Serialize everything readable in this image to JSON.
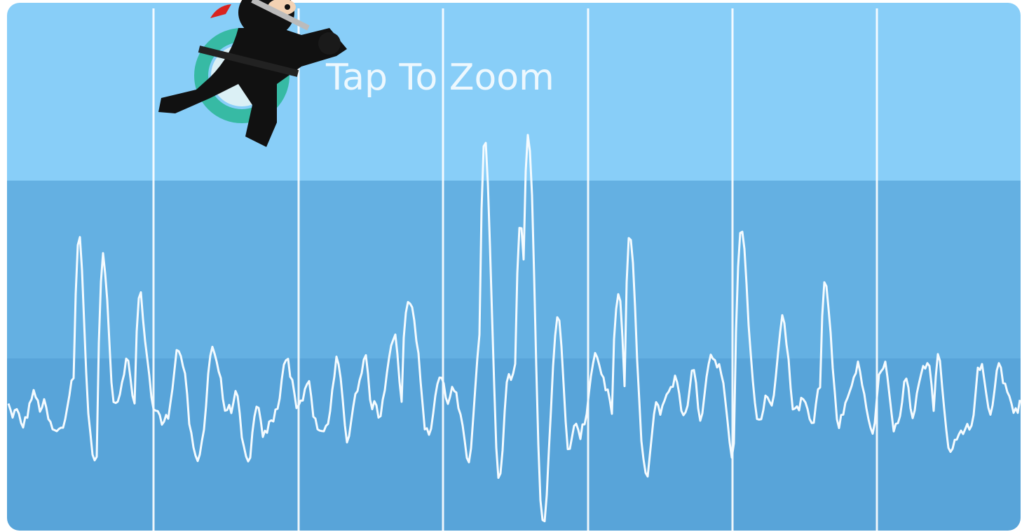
{
  "hint": {
    "text": "Tap To Zoom"
  }
}
